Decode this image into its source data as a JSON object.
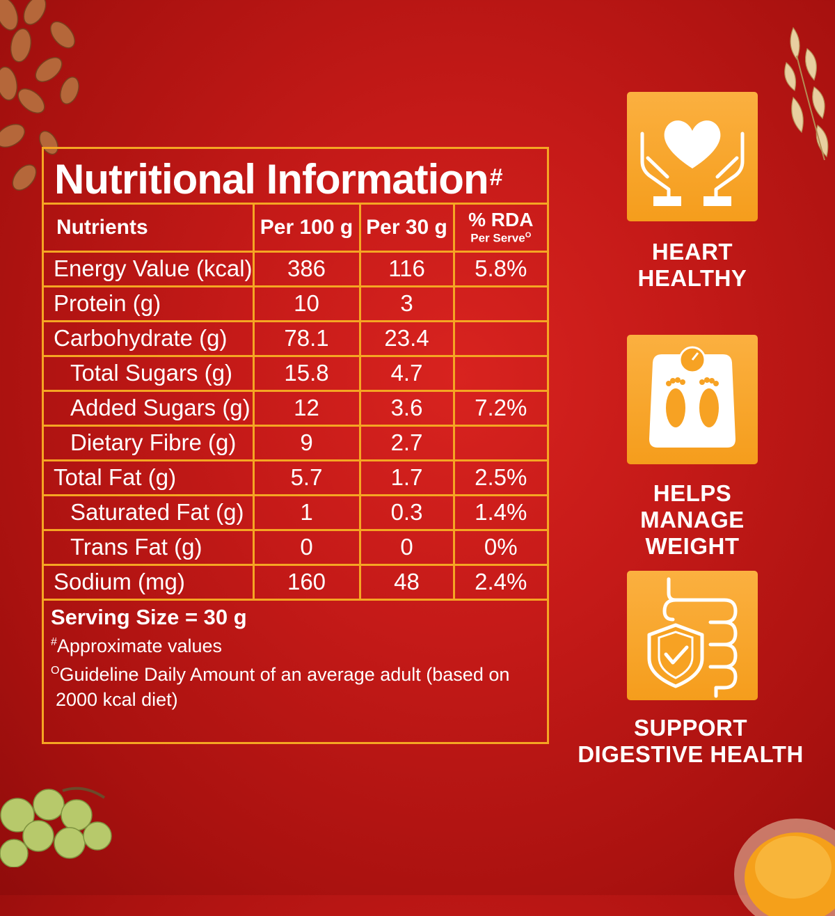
{
  "nutrition": {
    "title": "Nutritional Information",
    "title_mark": "#",
    "headers": {
      "nutrients": "Nutrients",
      "per100": "Per 100 g",
      "per30": "Per 30 g",
      "rda": "% RDA",
      "rda_sub": "Per Serve",
      "rda_mark": "O"
    },
    "rows": [
      {
        "name": "Energy Value (kcal)",
        "per100": "386",
        "per30": "116",
        "rda": "5.8%"
      },
      {
        "name": "Protein (g)",
        "per100": "10",
        "per30": "3",
        "rda": ""
      },
      {
        "name": "Carbohydrate (g)",
        "per100": "78.1",
        "per30": "23.4",
        "rda": ""
      },
      {
        "name": "Total Sugars (g)",
        "per100": "15.8",
        "per30": "4.7",
        "rda": ""
      },
      {
        "name": "Added Sugars (g)",
        "per100": "12",
        "per30": "3.6",
        "rda": "7.2%"
      },
      {
        "name": "Dietary Fibre (g)",
        "per100": "9",
        "per30": "2.7",
        "rda": ""
      },
      {
        "name": "Total Fat (g)",
        "per100": "5.7",
        "per30": "1.7",
        "rda": "2.5%"
      },
      {
        "name": "Saturated Fat (g)",
        "per100": "1",
        "per30": "0.3",
        "rda": "1.4%"
      },
      {
        "name": "Trans Fat (g)",
        "per100": "0",
        "per30": "0",
        "rda": "0%"
      },
      {
        "name": "Sodium (mg)",
        "per100": "160",
        "per30": "48",
        "rda": "2.4%"
      }
    ],
    "serving_size": "Serving Size = 30 g",
    "note1_mark": "#",
    "note1": "Approximate values",
    "note2_mark": "O",
    "note2_line1": "Guideline Daily Amount of an average adult (based on",
    "note2_line2": "2000 kcal diet)"
  },
  "benefits": [
    {
      "line1": "HEART",
      "line2": "HEALTHY",
      "icon": "heart-hands-icon"
    },
    {
      "line1": "HELPS MANAGE",
      "line2": "WEIGHT",
      "icon": "weighing-scale-icon"
    },
    {
      "line1": "SUPPORT",
      "line2": "DIGESTIVE HEALTH",
      "icon": "digestive-shield-icon"
    }
  ],
  "colors": {
    "background": "#c51a18",
    "border": "#f5a623",
    "badge": "#f7a223",
    "text": "#ffffff"
  }
}
